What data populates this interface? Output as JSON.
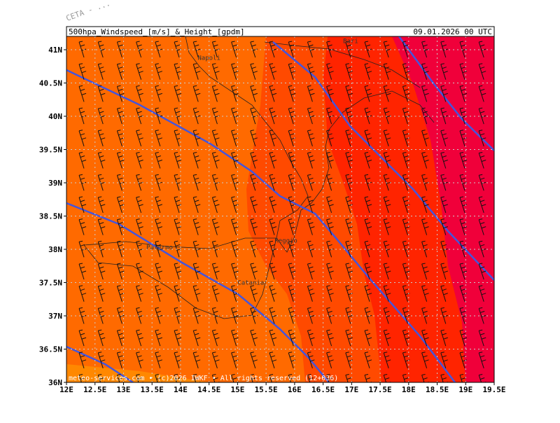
{
  "header": {
    "title": "500hpa_Windspeed_[m/s]_&_Height_[gpdm]",
    "date": "09.01.2026 00 UTC",
    "corner": "CETA - ..."
  },
  "axes": {
    "xlim": [
      12,
      19.5
    ],
    "ylim": [
      36,
      41.2
    ],
    "xticks": [
      {
        "value": 12,
        "label": "12E"
      },
      {
        "value": 12.5,
        "label": "12.5E"
      },
      {
        "value": 13,
        "label": "13E"
      },
      {
        "value": 13.5,
        "label": "13.5E"
      },
      {
        "value": 14,
        "label": "14E"
      },
      {
        "value": 14.5,
        "label": "14.5E"
      },
      {
        "value": 15,
        "label": "15E"
      },
      {
        "value": 15.5,
        "label": "15.5E"
      },
      {
        "value": 16,
        "label": "16E"
      },
      {
        "value": 16.5,
        "label": "16.5E"
      },
      {
        "value": 17,
        "label": "17E"
      },
      {
        "value": 17.5,
        "label": "17.5E"
      },
      {
        "value": 18,
        "label": "18E"
      },
      {
        "value": 18.5,
        "label": "18.5E"
      },
      {
        "value": 19,
        "label": "19E"
      },
      {
        "value": 19.5,
        "label": "19.5E"
      }
    ],
    "yticks": [
      {
        "value": 36,
        "label": "36N"
      },
      {
        "value": 36.5,
        "label": "36.5N"
      },
      {
        "value": 37,
        "label": "37N"
      },
      {
        "value": 37.5,
        "label": "37.5N"
      },
      {
        "value": 38,
        "label": "38N"
      },
      {
        "value": 38.5,
        "label": "38.5N"
      },
      {
        "value": 39,
        "label": "39N"
      },
      {
        "value": 39.5,
        "label": "39.5N"
      },
      {
        "value": 40,
        "label": "40N"
      },
      {
        "value": 40.5,
        "label": "40.5N"
      },
      {
        "value": 41,
        "label": "41N"
      }
    ]
  },
  "cities": [
    {
      "name": "Napoli",
      "lon": 14.3,
      "lat": 40.85
    },
    {
      "name": "Bari",
      "lon": 16.85,
      "lat": 41.1
    },
    {
      "name": "Palermo",
      "lon": 13.4,
      "lat": 38.0
    },
    {
      "name": "Reggio",
      "lon": 15.65,
      "lat": 38.1
    },
    {
      "name": "Catania",
      "lon": 15.0,
      "lat": 37.47
    }
  ],
  "footer": "meteo-services.com • (c)2026 IWKF • All rights reserved (12+036)"
}
